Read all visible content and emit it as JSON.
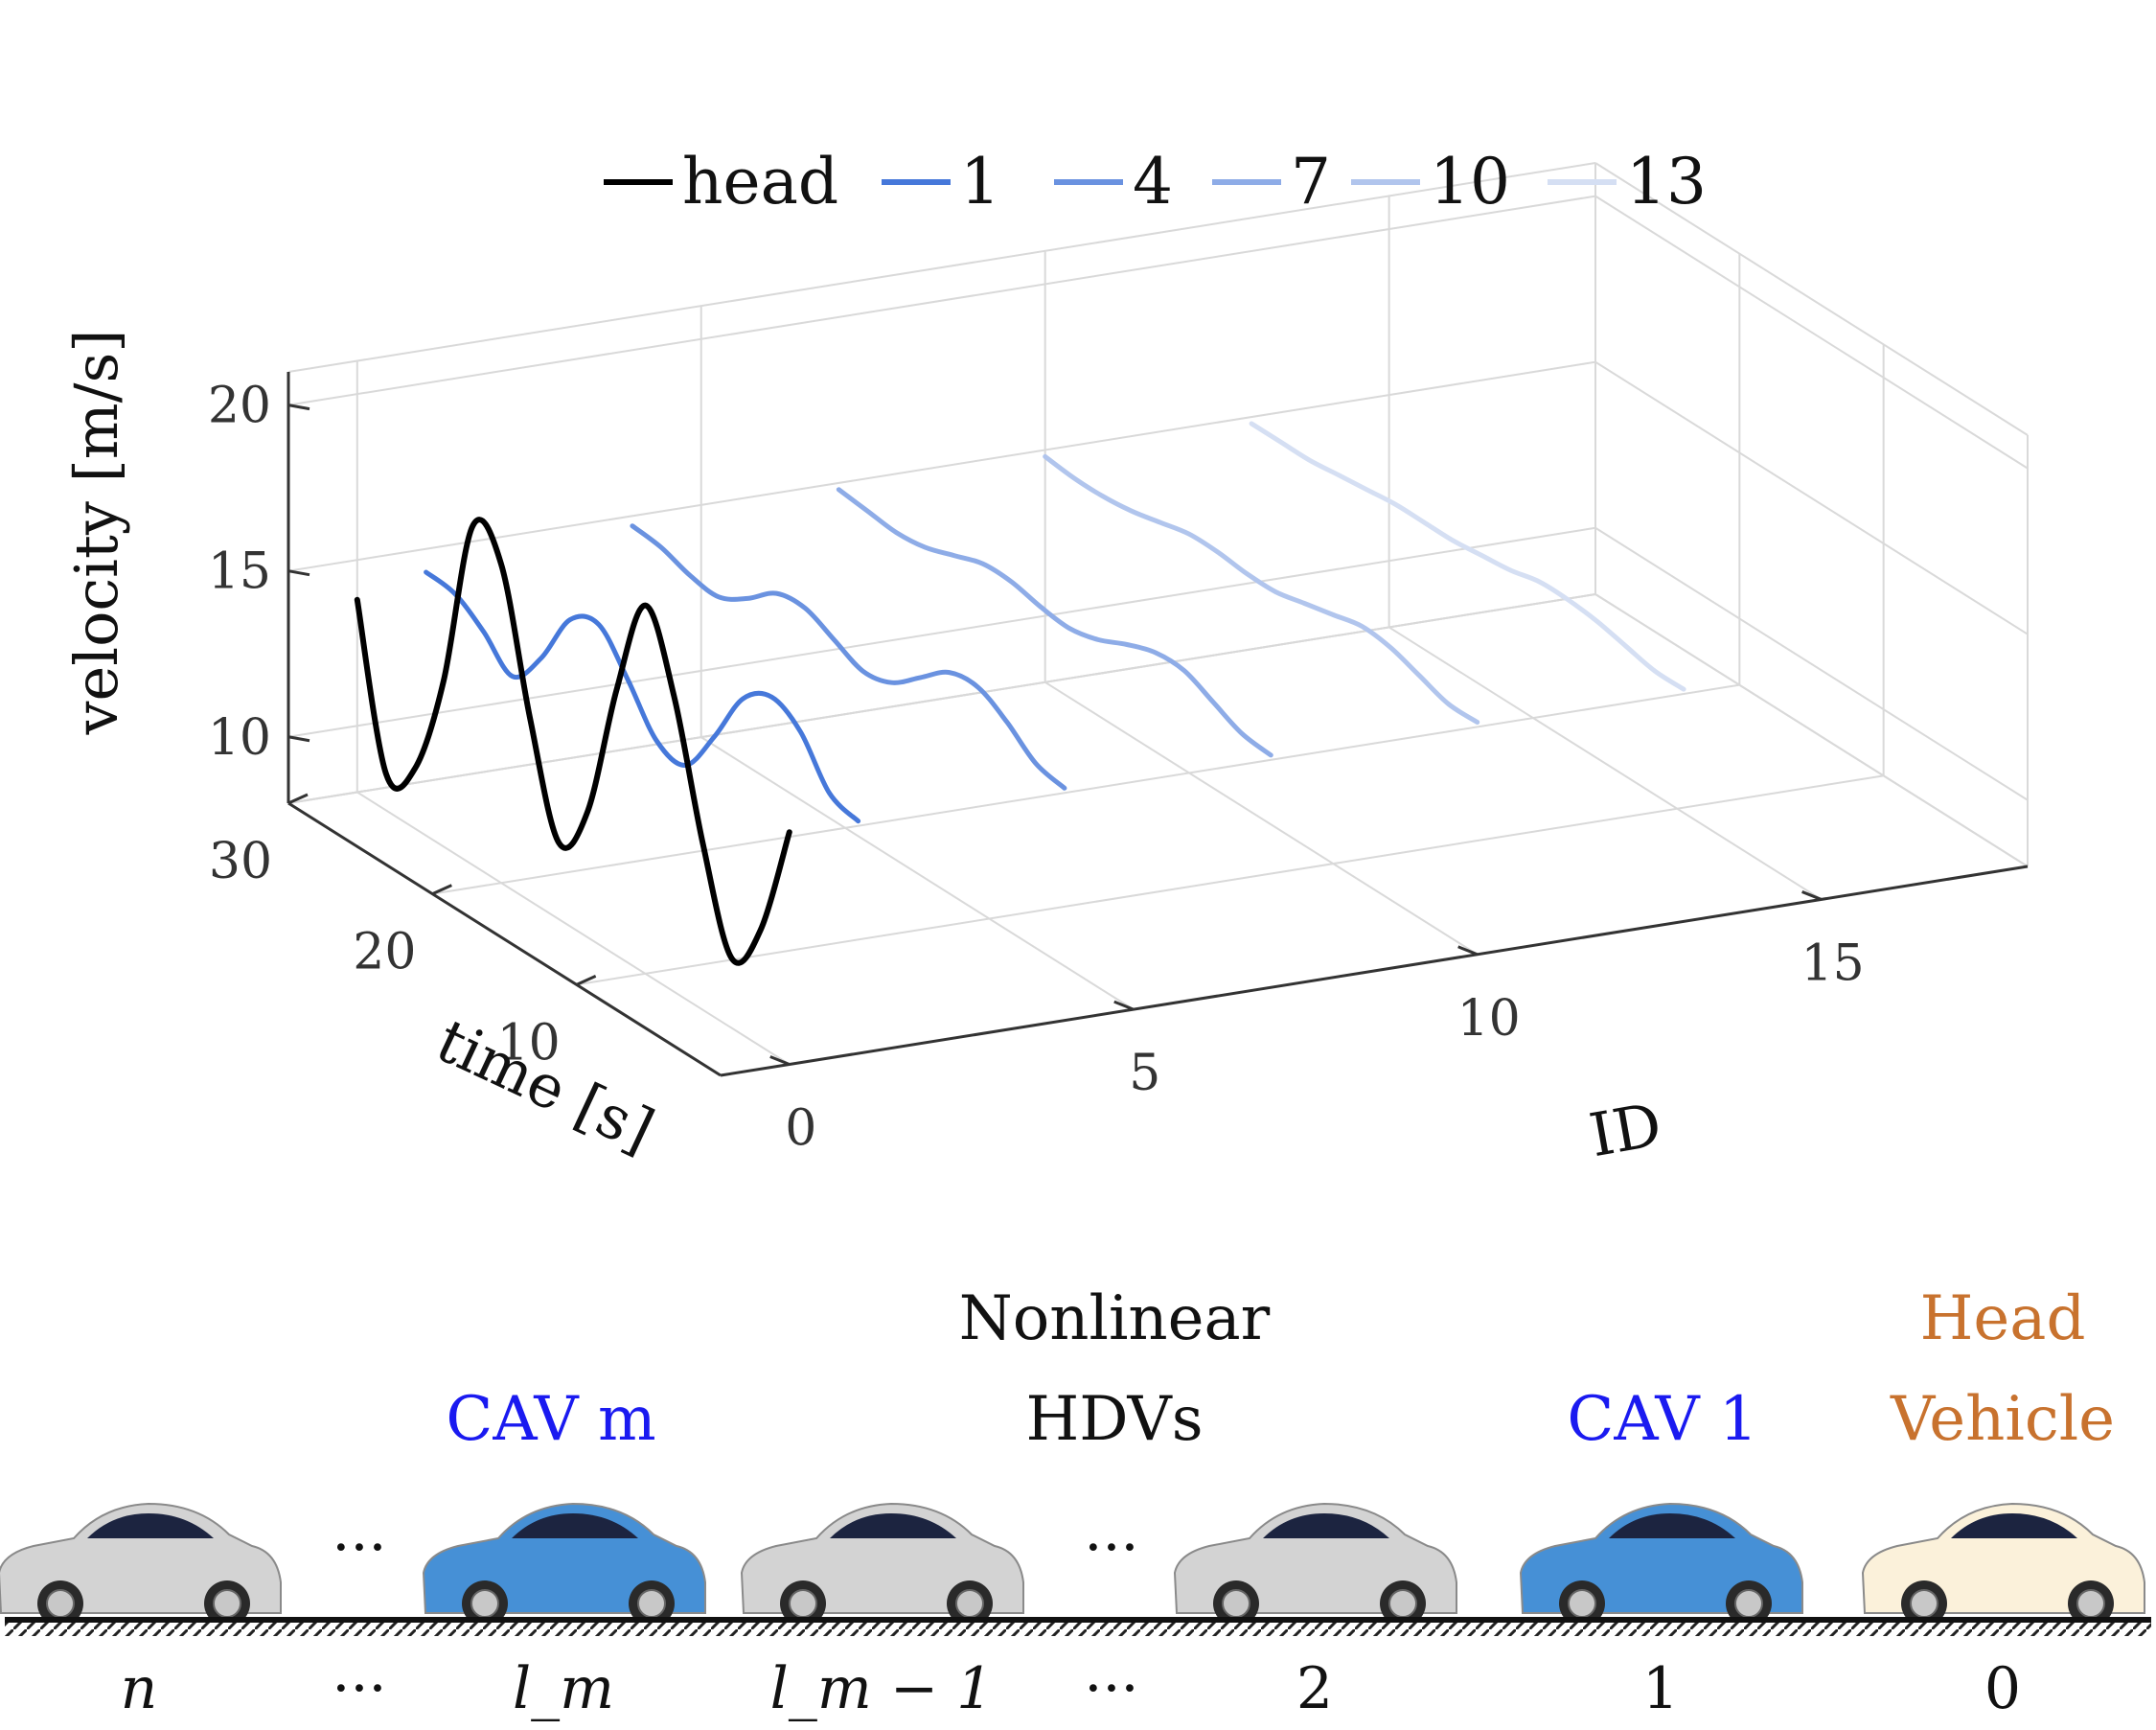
{
  "chart_data": {
    "type": "line",
    "title": "",
    "xlabel": "time [s]",
    "ylabel": "ID",
    "zlabel": "velocity [m/s]",
    "xlim": [
      0,
      30
    ],
    "ylim": [
      -1,
      18
    ],
    "zlim": [
      8,
      21
    ],
    "xticks": [
      "10",
      "20",
      "30"
    ],
    "yticks": [
      "0",
      "5",
      "10",
      "15"
    ],
    "zticks": [
      "10",
      "15",
      "20"
    ],
    "grid": true,
    "legend": "top",
    "legend_entries": [
      "head",
      "1",
      "4",
      "7",
      "10",
      "13"
    ],
    "colors": {
      "head": "#000000",
      "cav": "#3a6fd8",
      "hdv": "#c6c6c6"
    },
    "series": [
      {
        "id": 0,
        "role": "head",
        "x": [
          0,
          2,
          4,
          6,
          8,
          10,
          12,
          14,
          16,
          18,
          20,
          22,
          24,
          26,
          28,
          30
        ],
        "z": [
          15.0,
          11.5,
          10.1,
          13.0,
          16.9,
          19.1,
          16.0,
          11.8,
          10.3,
          13.5,
          17.6,
          18.2,
          13.0,
          9.8,
          9.1,
          13.8
        ]
      },
      {
        "id": 1,
        "role": "cav",
        "x": [
          0,
          2,
          4,
          6,
          8,
          10,
          12,
          14,
          16,
          18,
          20,
          22,
          24,
          26,
          28,
          30
        ],
        "z": [
          15.0,
          15.3,
          16.6,
          17.1,
          16.5,
          14.8,
          13.4,
          13.6,
          14.9,
          16.0,
          15.6,
          13.9,
          12.8,
          13.6,
          14.2,
          14.3
        ]
      },
      {
        "id": 4,
        "role": "cav",
        "x": [
          0,
          2,
          4,
          6,
          8,
          10,
          12,
          14,
          16,
          18,
          20,
          22,
          24,
          26,
          28,
          30
        ],
        "z": [
          15.0,
          15.2,
          15.9,
          16.4,
          16.3,
          15.6,
          14.9,
          14.7,
          15.1,
          15.5,
          15.4,
          14.7,
          14.2,
          14.3,
          14.6,
          14.7
        ]
      },
      {
        "id": 7,
        "role": "cav",
        "x": [
          0,
          2,
          4,
          6,
          8,
          10,
          12,
          14,
          16,
          18,
          20,
          22,
          24,
          26,
          28,
          30
        ],
        "z": [
          15.0,
          15.1,
          15.5,
          15.9,
          15.9,
          15.6,
          15.2,
          15.0,
          15.1,
          15.3,
          15.3,
          15.0,
          14.7,
          14.6,
          14.7,
          14.8
        ]
      },
      {
        "id": 10,
        "role": "cav",
        "x": [
          0,
          2,
          4,
          6,
          8,
          10,
          12,
          14,
          16,
          18,
          20,
          22,
          24,
          26,
          28,
          30
        ],
        "z": [
          15.0,
          15.0,
          15.3,
          15.6,
          15.7,
          15.5,
          15.3,
          15.1,
          15.1,
          15.2,
          15.2,
          15.0,
          14.8,
          14.7,
          14.7,
          14.8
        ]
      },
      {
        "id": 13,
        "role": "cav",
        "x": [
          0,
          2,
          4,
          6,
          8,
          10,
          12,
          14,
          16,
          18,
          20,
          22,
          24,
          26,
          28,
          30
        ],
        "z": [
          15.0,
          15.0,
          15.2,
          15.4,
          15.5,
          15.5,
          15.3,
          15.2,
          15.1,
          15.1,
          15.1,
          15.0,
          14.9,
          14.8,
          14.8,
          14.8
        ]
      }
    ]
  },
  "diagram": {
    "labels": {
      "cav_m": "CAV m",
      "nonlinear_line1": "Nonlinear",
      "nonlinear_line2": "HDVs",
      "cav_1": "CAV 1",
      "head_line1": "Head",
      "head_line2": "Vehicle"
    },
    "colors": {
      "cav_label": "#1a1af0",
      "head_label": "#c8722e",
      "cav_car": "#4690d6",
      "hdv_car": "#d3d3d3",
      "head_car": "#fbf1da"
    },
    "vehicles": [
      {
        "index_label": "n",
        "type": "hdv"
      },
      {
        "index_label": "···",
        "type": "dots"
      },
      {
        "index_label": "l_m",
        "type": "cav"
      },
      {
        "index_label": "l_m − 1",
        "type": "hdv"
      },
      {
        "index_label": "···",
        "type": "dots"
      },
      {
        "index_label": "2",
        "type": "hdv"
      },
      {
        "index_label": "1",
        "type": "cav"
      },
      {
        "index_label": "0",
        "type": "head"
      }
    ]
  }
}
